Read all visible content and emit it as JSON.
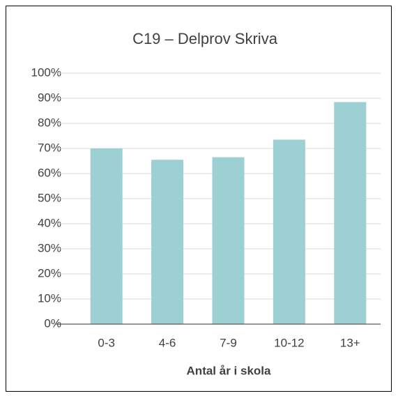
{
  "chart_data": {
    "type": "bar",
    "title": "C19 – Delprov Skriva",
    "x_label": "Antal år i skola",
    "categories": [
      "0-3",
      "4-6",
      "7-9",
      "10-12",
      "13+"
    ],
    "values": [
      70,
      65.5,
      66.5,
      73.5,
      88.5
    ],
    "color": "#9dd0d2",
    "ylim": [
      0,
      100
    ],
    "yticks": [
      {
        "value": 0,
        "label": "0%"
      },
      {
        "value": 10,
        "label": "10%"
      },
      {
        "value": 20,
        "label": "20%"
      },
      {
        "value": 30,
        "label": "30%"
      },
      {
        "value": 40,
        "label": "40%"
      },
      {
        "value": 50,
        "label": "50%"
      },
      {
        "value": 60,
        "label": "60%"
      },
      {
        "value": 70,
        "label": "70%"
      },
      {
        "value": 80,
        "label": "80%"
      },
      {
        "value": 90,
        "label": "90%"
      },
      {
        "value": 100,
        "label": "100%"
      }
    ],
    "grid": true
  }
}
